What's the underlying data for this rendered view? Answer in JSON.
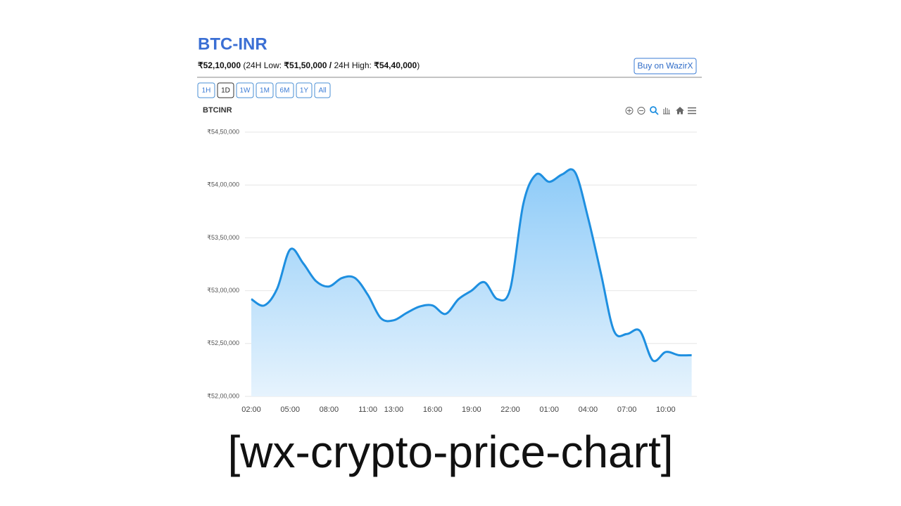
{
  "header": {
    "title": "BTC-INR",
    "price": "₹52,10,000",
    "low_label": "(24H Low:",
    "low": "₹51,50,000",
    "separator": "/",
    "high_label": "24H High:",
    "high": "₹54,40,000",
    "close": ")",
    "buy_button": "Buy on WazirX"
  },
  "range_buttons": [
    "1H",
    "1D",
    "1W",
    "1M",
    "6M",
    "1Y",
    "All"
  ],
  "active_range": "1D",
  "caption": "[wx-crypto-price-chart]",
  "chart_data": {
    "type": "area",
    "title": "BTCINR",
    "color": "#1e8fe0",
    "categories": [
      "02:00",
      null,
      null,
      "05:00",
      null,
      null,
      "08:00",
      null,
      null,
      "11:00",
      null,
      "13:00",
      null,
      null,
      "16:00",
      null,
      null,
      "19:00",
      null,
      null,
      "22:00",
      null,
      null,
      "01:00",
      null,
      null,
      "04:00",
      null,
      null,
      "07:00",
      null,
      null,
      "10:00",
      null,
      null
    ],
    "values": [
      5292000,
      5286000,
      5302000,
      5339000,
      5326000,
      5309000,
      5304000,
      5312000,
      5312000,
      5296000,
      5274000,
      5272000,
      5279000,
      5285000,
      5286000,
      5278000,
      5292000,
      5300000,
      5308000,
      5292000,
      5302000,
      5382000,
      5410000,
      5403000,
      5410000,
      5412000,
      5369000,
      5316000,
      5262000,
      5259000,
      5262000,
      5234000,
      5242000,
      5239000,
      5239000
    ],
    "ylim": [
      5200000,
      5450000
    ],
    "yticks": [
      {
        "value": 5200000,
        "label": "₹52,00,000"
      },
      {
        "value": 5250000,
        "label": "₹52,50,000"
      },
      {
        "value": 5300000,
        "label": "₹53,00,000"
      },
      {
        "value": 5350000,
        "label": "₹53,50,000"
      },
      {
        "value": 5400000,
        "label": "₹54,00,000"
      },
      {
        "value": 5450000,
        "label": "₹54,50,000"
      }
    ],
    "grid": true
  }
}
